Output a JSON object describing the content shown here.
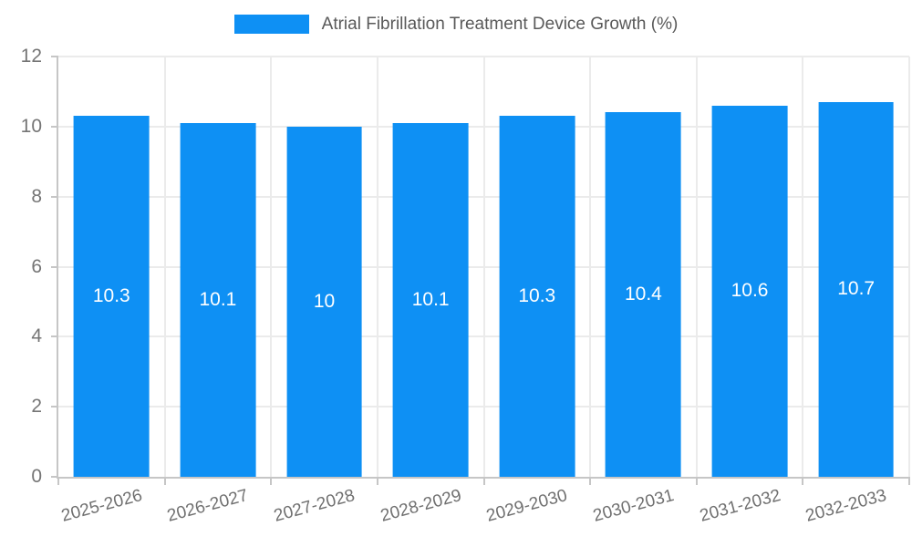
{
  "legend": {
    "label": "Atrial Fibrillation Treatment Device Growth (%)"
  },
  "chart_data": {
    "type": "bar",
    "title": "Atrial Fibrillation Treatment Device Growth (%)",
    "categories": [
      "2025-2026",
      "2026-2027",
      "2027-2028",
      "2028-2029",
      "2029-2030",
      "2030-2031",
      "2031-2032",
      "2032-2033"
    ],
    "values": [
      10.3,
      10.1,
      10,
      10.1,
      10.3,
      10.4,
      10.6,
      10.7
    ],
    "value_labels": [
      "10.3",
      "10.1",
      "10",
      "10.1",
      "10.3",
      "10.4",
      "10.6",
      "10.7"
    ],
    "xlabel": "",
    "ylabel": "",
    "ylim": [
      0,
      12
    ],
    "yticks": [
      0,
      2,
      4,
      6,
      8,
      10,
      12
    ],
    "grid": true,
    "legend_position": "top",
    "bar_color": "#0e90f4",
    "value_label_color": "#ffffff",
    "axis_color": "#c6c6c6",
    "grid_color": "#ebebeb",
    "tick_label_color": "#757575"
  }
}
